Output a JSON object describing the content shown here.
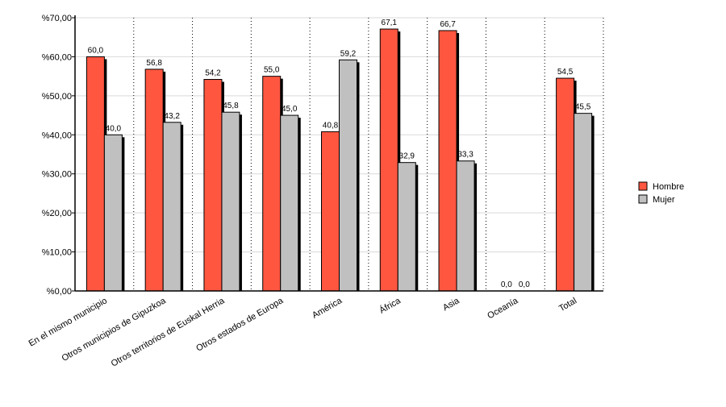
{
  "chart_data": {
    "type": "bar",
    "categories": [
      "En el mismo municipio",
      "Otros municipios de Gipuzkoa",
      "Otros territorios de Euskal Herria",
      "Otros estados de Europa",
      "América",
      "África",
      "Asia",
      "Oceanía",
      "Total"
    ],
    "series": [
      {
        "name": "Hombre",
        "color": "#ff5640",
        "values": [
          60.0,
          56.8,
          54.2,
          55.0,
          40.8,
          67.1,
          66.7,
          0.0,
          54.5
        ],
        "labels": [
          "60,0",
          "56,8",
          "54,2",
          "55,0",
          "40,8",
          "67,1",
          "66,7",
          "0,0",
          "54,5"
        ]
      },
      {
        "name": "Mujer",
        "color": "#c0c0c0",
        "values": [
          40.0,
          43.2,
          45.8,
          45.0,
          59.2,
          32.9,
          33.3,
          0.0,
          45.5
        ],
        "labels": [
          "40,0",
          "43,2",
          "45,8",
          "45,0",
          "59,2",
          "32,9",
          "33,3",
          "0,0",
          "45,5"
        ]
      }
    ],
    "ylim": [
      0,
      70
    ],
    "yticks": [
      0,
      10,
      20,
      30,
      40,
      50,
      60,
      70
    ],
    "ytick_labels": [
      "%0,00",
      "%10,00",
      "%20,00",
      "%30,00",
      "%40,00",
      "%50,00",
      "%60,00",
      "%70,00"
    ],
    "grid": true,
    "legend_position": "right"
  }
}
